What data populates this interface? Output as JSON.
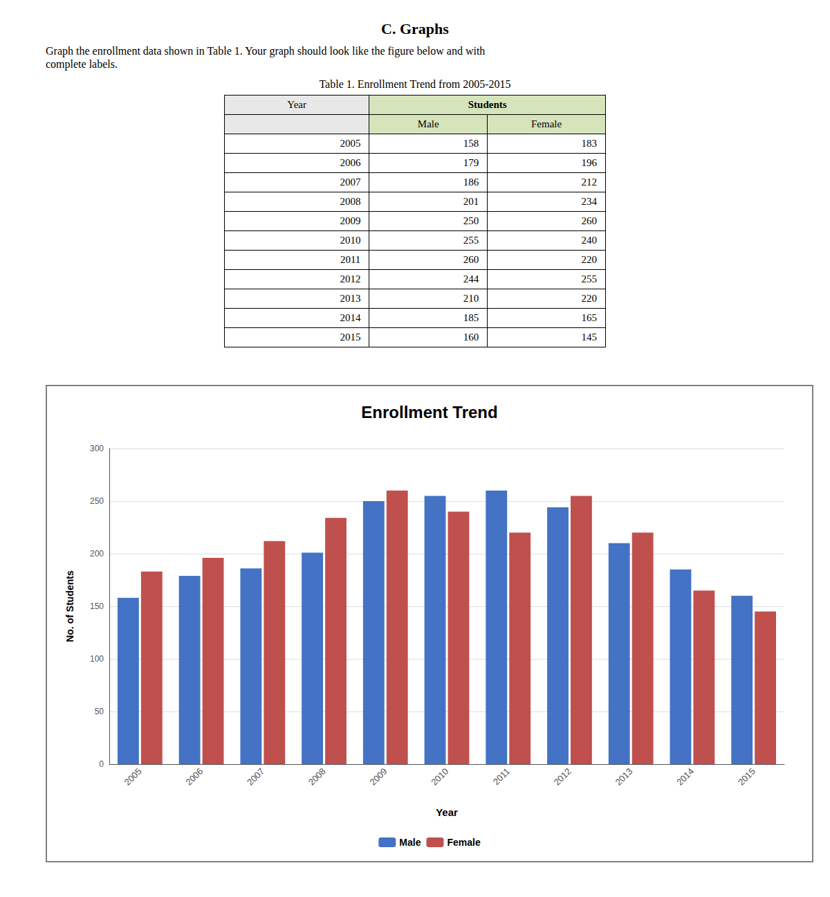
{
  "page": {
    "title": "C. Graphs",
    "text": [
      "Graph the enrollment data shown in Table 1. Your graph should look like the figure below and with",
      "complete labels."
    ],
    "table_title": "Table 1. Enrollment Trend from 2005-2015",
    "table_header": {
      "first_column": "Year",
      "group": "Students"
    },
    "header_color": "#E8E8E8",
    "group_color": "#D6E4BC"
  },
  "chart_data": {
    "type": "bar",
    "title": "Enrollment Trend",
    "x_label": "Year",
    "y_label": "No. of Students",
    "categories": [
      "2005",
      "2006",
      "2007",
      "2008",
      "2009",
      "2010",
      "2011",
      "2012",
      "2013",
      "2014",
      "2015"
    ],
    "series": [
      {
        "name": "Male",
        "color": "#4472C4",
        "values": [
          158,
          179,
          186,
          201,
          250,
          255,
          260,
          244,
          210,
          185,
          160
        ]
      },
      {
        "name": "Female",
        "color": "#C0504D",
        "values": [
          183,
          196,
          212,
          234,
          260,
          240,
          220,
          255,
          220,
          165,
          145
        ]
      }
    ],
    "ylim": [
      0,
      300
    ],
    "yticks": [
      0,
      50,
      100,
      150,
      200,
      250,
      300
    ],
    "grid": true,
    "legend": "bottom"
  }
}
